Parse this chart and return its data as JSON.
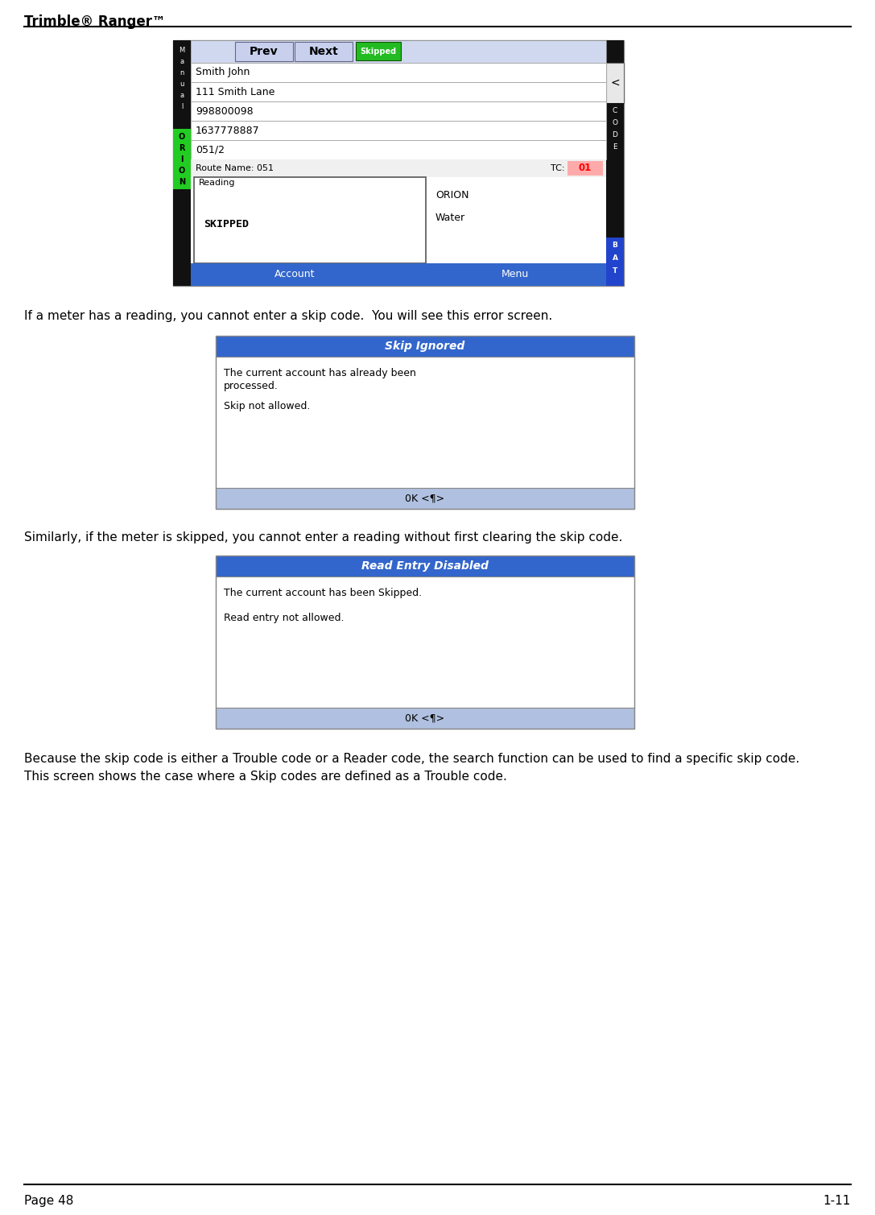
{
  "page_title": "Trimble® Ranger™",
  "page_num": "Page 48",
  "page_section": "1-11",
  "bg_color": "#ffffff",
  "header_line_color": "#000000",
  "footer_line_color": "#000000",
  "para1": "If a meter has a reading, you cannot enter a skip code.  You will see this error screen.",
  "para2": "Similarly, if the meter is skipped, you cannot enter a reading without first clearing the skip code.",
  "para3": "Because the skip code is either a Trouble code or a Reader code, the search function can be used to find a specific skip code.  This screen shows the case where a Skip codes are defined as a Trouble code.",
  "screen1": {
    "green_btn_color": "#22bb22",
    "skipped_label": "Skipped",
    "prev_label": "Prev",
    "next_label": "Next",
    "orion_bg": "#22cc22",
    "bat_color": "#2244cc",
    "tc_label": "TC:",
    "tc_value": "01",
    "tc_bg": "#ffaaaa",
    "route_label": "Route Name: 051",
    "reading_label": "Reading",
    "skipped_reading": "SKIPPED",
    "orion_water": "ORION",
    "water_label": "Water",
    "account_btn": "Account",
    "menu_btn": "Menu",
    "btn_bar_color": "#3366cc",
    "fields": [
      "Smith John",
      "111 Smith Lane",
      "998800098",
      "1637778887",
      "051/2"
    ],
    "back_btn": "<"
  },
  "screen2": {
    "title": "Skip Ignored",
    "title_bg": "#3366cc",
    "title_color": "#ffffff",
    "line1": "The current account has already been",
    "line2": "processed.",
    "line3": "Skip not allowed.",
    "ok_bar_color": "#b0c0e0",
    "ok_label": "0K <¶>"
  },
  "screen3": {
    "title": "Read Entry Disabled",
    "title_bg": "#3366cc",
    "title_color": "#ffffff",
    "line1": "The current account has been Skipped.",
    "line2": "Read entry not allowed.",
    "ok_bar_color": "#b0c0e0",
    "ok_label": "0K <¶>"
  }
}
